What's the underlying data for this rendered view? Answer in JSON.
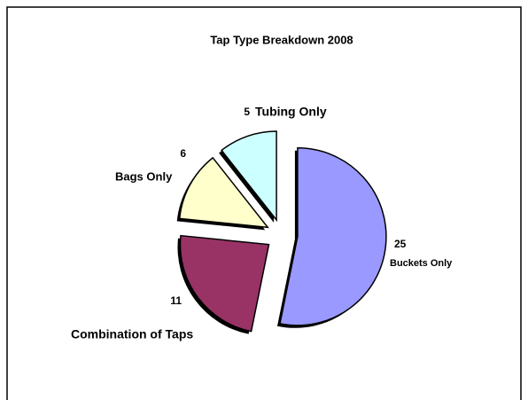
{
  "chart_data": {
    "type": "pie",
    "title": "Tap Type Breakdown 2008",
    "categories": [
      "Buckets Only",
      "Combination of Taps",
      "Bags Only",
      "Tubing Only"
    ],
    "values": [
      25,
      11,
      6,
      5
    ],
    "colors": [
      "#9999ff",
      "#993366",
      "#ffffcc",
      "#ccffff"
    ]
  }
}
